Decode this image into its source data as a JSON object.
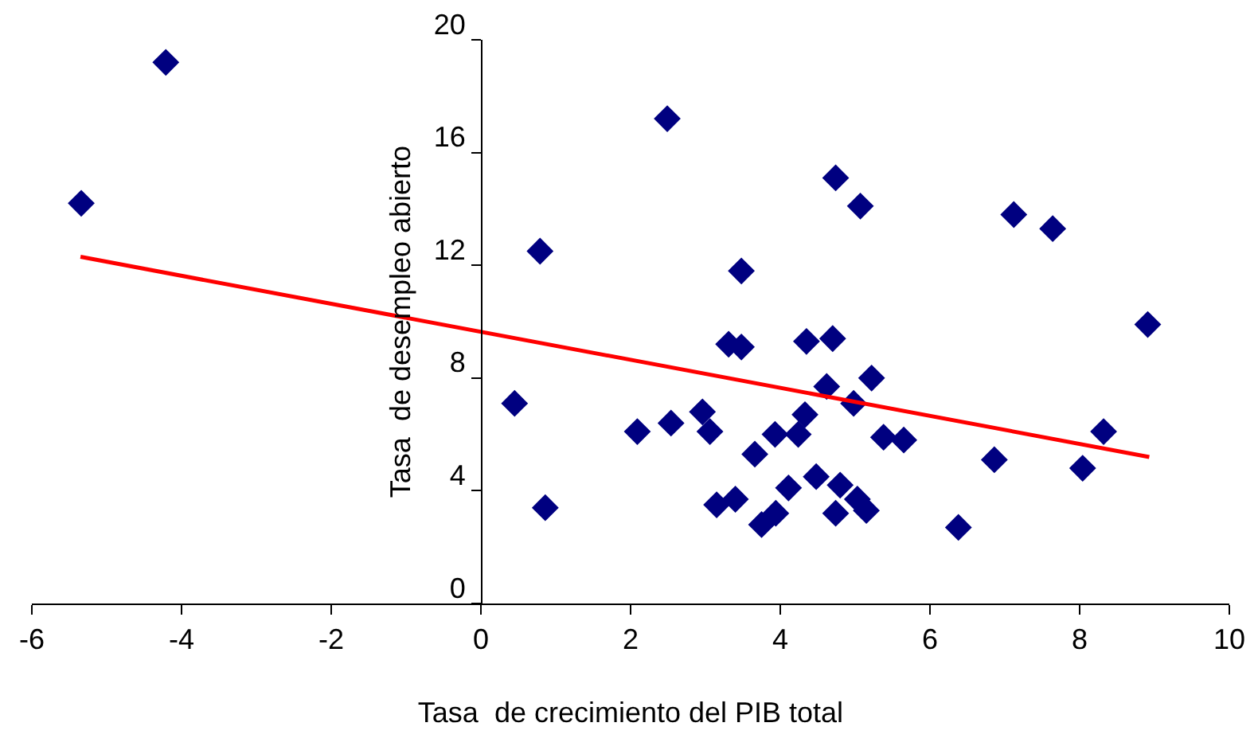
{
  "chart_data": {
    "type": "scatter",
    "xlabel": "Tasa  de crecimiento del PIB total",
    "ylabel": "Tasa  de desempleo abierto",
    "xlim": [
      -6,
      10
    ],
    "xticks": [
      -6,
      -4,
      -2,
      0,
      2,
      4,
      6,
      8,
      10
    ],
    "ylim": [
      0,
      20
    ],
    "yticks": [
      0,
      4,
      8,
      12,
      16,
      20
    ],
    "grid": false,
    "marker": "diamond",
    "series": [
      {
        "type": "scatter",
        "color": "#000080",
        "x": [
          -5.34,
          -4.21,
          0.79,
          0.45,
          0.86,
          2.49,
          4.74,
          5.07,
          7.12,
          7.64,
          3.48,
          8.91,
          3.31,
          3.48,
          4.35,
          4.7,
          2.09,
          2.54,
          2.96,
          3.06,
          3.66,
          3.93,
          4.24,
          4.33,
          4.62,
          4.98,
          5.22,
          5.38,
          5.65,
          6.86,
          8.04,
          8.32,
          6.38,
          3.15,
          3.4,
          3.75,
          3.94,
          4.11,
          4.48,
          4.8,
          4.74,
          5.03,
          5.15
        ],
        "values": [
          14.2,
          19.2,
          12.5,
          7.1,
          3.4,
          17.2,
          15.1,
          14.1,
          13.8,
          13.3,
          11.8,
          9.9,
          9.2,
          9.1,
          9.3,
          9.4,
          6.1,
          6.4,
          6.8,
          6.1,
          5.3,
          6.0,
          6.0,
          6.7,
          7.7,
          7.1,
          8.0,
          5.9,
          5.8,
          5.1,
          4.8,
          6.1,
          2.7,
          3.5,
          3.7,
          2.8,
          3.2,
          4.1,
          4.5,
          4.2,
          3.2,
          3.7,
          3.3
        ]
      },
      {
        "type": "line",
        "color": "#ff0000",
        "marker": "none",
        "line_style": "solid",
        "x": [
          -5.35,
          8.93
        ],
        "values": [
          12.3,
          5.2
        ]
      }
    ]
  }
}
